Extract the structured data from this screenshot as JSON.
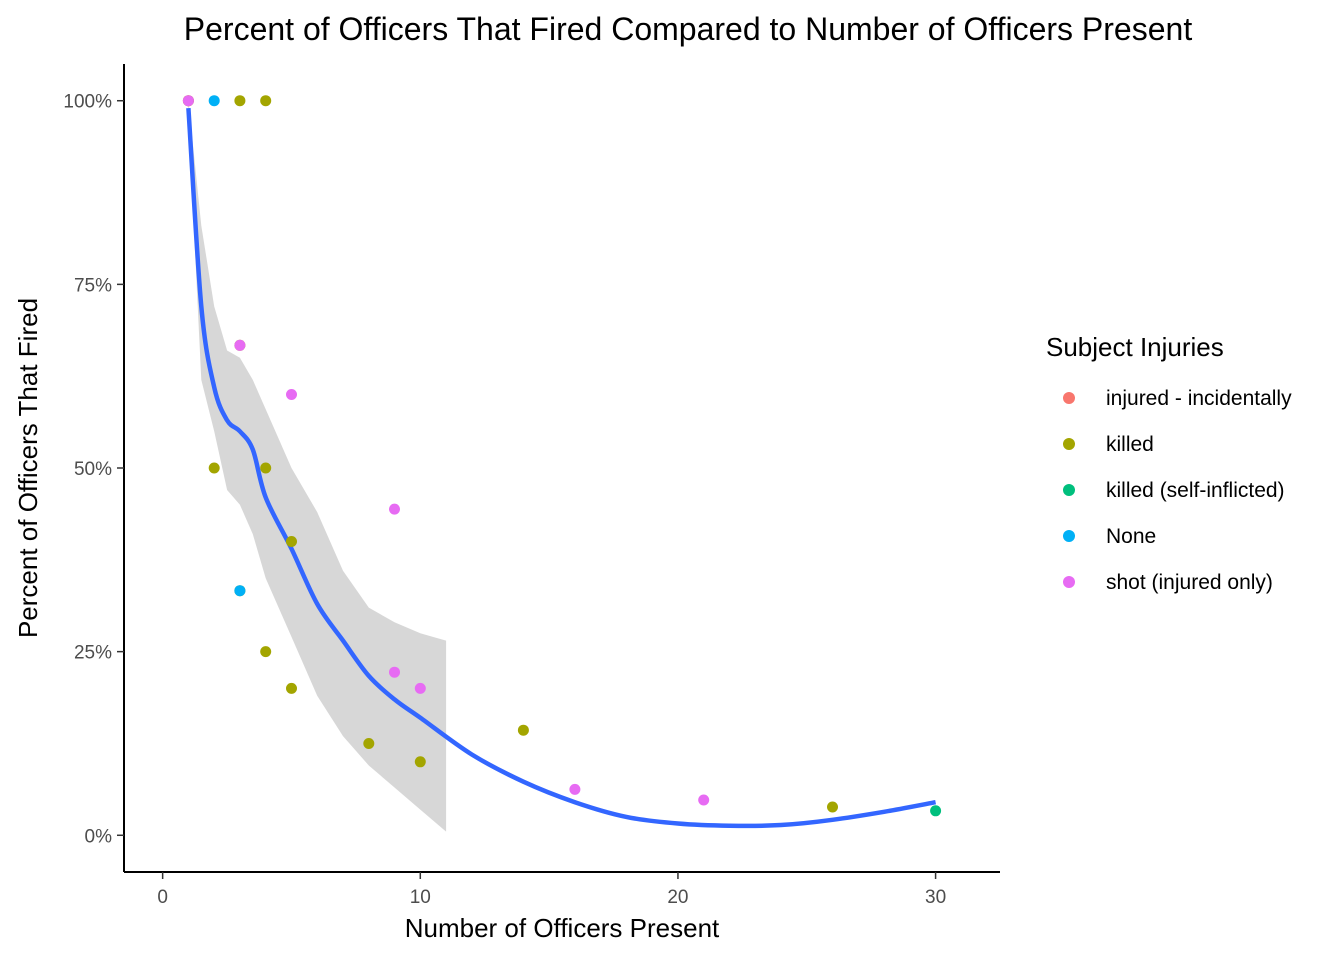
{
  "chart_data": {
    "type": "scatter",
    "title": "Percent of Officers That Fired Compared to Number of Officers Present",
    "xlabel": "Number of Officers Present",
    "ylabel": "Percent of Officers That Fired",
    "xlim": [
      -1.5,
      32.5
    ],
    "ylim": [
      -5,
      105
    ],
    "x_ticks": [
      0,
      10,
      20,
      30
    ],
    "x_tick_labels": [
      "0",
      "10",
      "20",
      "30"
    ],
    "y_ticks": [
      0,
      25,
      50,
      75,
      100
    ],
    "y_tick_labels": [
      "0%",
      "25%",
      "50%",
      "75%",
      "100%"
    ],
    "grid": false,
    "legend": {
      "title": "Subject Injuries",
      "placement": "right",
      "items": [
        {
          "label": "injured - incidentally",
          "color": "#F8766D"
        },
        {
          "label": "killed",
          "color": "#A3A500"
        },
        {
          "label": "killed (self-inflicted)",
          "color": "#00BF7D"
        },
        {
          "label": "None",
          "color": "#00B0F6"
        },
        {
          "label": "shot (injured only)",
          "color": "#E76BF3"
        }
      ]
    },
    "points": [
      {
        "x": 1,
        "y": 100,
        "series": "injured - incidentally"
      },
      {
        "x": 1,
        "y": 100,
        "series": "killed"
      },
      {
        "x": 1,
        "y": 100,
        "series": "shot (injured only)"
      },
      {
        "x": 2,
        "y": 100,
        "series": "None"
      },
      {
        "x": 3,
        "y": 100,
        "series": "killed"
      },
      {
        "x": 4,
        "y": 100,
        "series": "killed"
      },
      {
        "x": 3,
        "y": 66.7,
        "series": "killed"
      },
      {
        "x": 3,
        "y": 66.7,
        "series": "shot (injured only)"
      },
      {
        "x": 5,
        "y": 60,
        "series": "shot (injured only)"
      },
      {
        "x": 2,
        "y": 50,
        "series": "killed"
      },
      {
        "x": 4,
        "y": 50,
        "series": "killed"
      },
      {
        "x": 9,
        "y": 44.4,
        "series": "shot (injured only)"
      },
      {
        "x": 5,
        "y": 40,
        "series": "killed"
      },
      {
        "x": 3,
        "y": 33.3,
        "series": "killed"
      },
      {
        "x": 3,
        "y": 33.3,
        "series": "None"
      },
      {
        "x": 4,
        "y": 25,
        "series": "killed"
      },
      {
        "x": 9,
        "y": 22.2,
        "series": "shot (injured only)"
      },
      {
        "x": 5,
        "y": 20,
        "series": "killed"
      },
      {
        "x": 10,
        "y": 20,
        "series": "shot (injured only)"
      },
      {
        "x": 14,
        "y": 14.3,
        "series": "killed"
      },
      {
        "x": 8,
        "y": 12.5,
        "series": "killed"
      },
      {
        "x": 10,
        "y": 10,
        "series": "killed"
      },
      {
        "x": 16,
        "y": 6.25,
        "series": "shot (injured only)"
      },
      {
        "x": 21,
        "y": 4.8,
        "series": "shot (injured only)"
      },
      {
        "x": 26,
        "y": 3.85,
        "series": "killed"
      },
      {
        "x": 30,
        "y": 3.33,
        "series": "killed (self-inflicted)"
      }
    ],
    "smooth_line": {
      "color": "#3366FF",
      "x": [
        1,
        1.5,
        2,
        2.5,
        3,
        3.5,
        4,
        5,
        6,
        7,
        8,
        9,
        10,
        12,
        14,
        16,
        18,
        20,
        22,
        24,
        26,
        28,
        30
      ],
      "y": [
        99,
        72,
        61,
        56.5,
        55,
        52.5,
        46,
        39,
        31.5,
        26.5,
        21.7,
        18.5,
        16,
        11,
        7.3,
        4.5,
        2.5,
        1.6,
        1.3,
        1.4,
        2.1,
        3.2,
        4.5
      ]
    },
    "confidence_band": {
      "color": "#d3d3d3",
      "x": [
        1,
        1.5,
        2,
        2.5,
        3,
        3.5,
        4,
        5,
        6,
        7,
        8,
        9,
        10,
        11
      ],
      "upper": [
        100,
        83,
        72,
        66,
        65,
        62,
        58,
        50,
        44,
        36,
        31,
        29,
        27.5,
        26.5
      ],
      "lower": [
        98,
        62,
        55,
        47,
        45,
        41,
        35,
        27,
        19,
        13.5,
        9.5,
        6.5,
        3.5,
        0.5
      ]
    }
  }
}
